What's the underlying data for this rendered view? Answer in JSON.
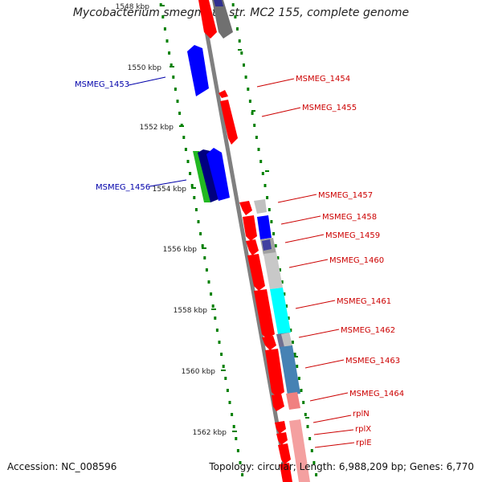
{
  "title": "Mycobacterium smegmatis str. MC2 155, complete genome",
  "accession": "Accession: NC_008596",
  "summary": "Topology: circular; Length: 6,988,209 bp; Genes: 6,770",
  "colors": {
    "backbone": "#808080",
    "forward_gene": "#ff0000",
    "reverse_gene": "#0000ff",
    "label_forward": "#cc0000",
    "label_reverse": "#0000aa",
    "ruler": "#008000"
  },
  "ruler": [
    {
      "label": "1548 kbp",
      "kbp": 1548
    },
    {
      "label": "1550 kbp",
      "kbp": 1550
    },
    {
      "label": "1552 kbp",
      "kbp": 1552
    },
    {
      "label": "1554 kbp",
      "kbp": 1554
    },
    {
      "label": "1556 kbp",
      "kbp": 1556
    },
    {
      "label": "1558 kbp",
      "kbp": 1558
    },
    {
      "label": "1560 kbp",
      "kbp": 1560
    },
    {
      "label": "1562 kbp",
      "kbp": 1562
    }
  ],
  "gene_labels_forward": [
    "MSMEG_1454",
    "MSMEG_1455",
    "MSMEG_1457",
    "MSMEG_1458",
    "MSMEG_1459",
    "MSMEG_1460",
    "MSMEG_1461",
    "MSMEG_1462",
    "MSMEG_1463",
    "MSMEG_1464",
    "rplN",
    "rplX",
    "rplE"
  ],
  "gene_labels_reverse": [
    "MSMEG_1453",
    "MSMEG_1456"
  ]
}
